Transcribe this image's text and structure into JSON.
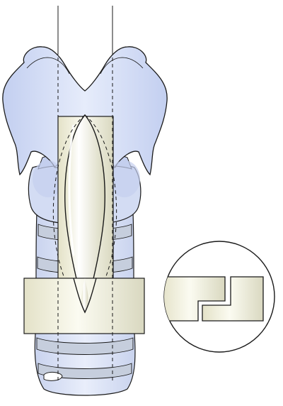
{
  "diagram": {
    "subject": "larynx-and-trachea-anatomy",
    "palette": {
      "cartilage_fill": "#d6def5",
      "cartilage_shadow": "#b8c4ea",
      "trachea_fill": "#dbe3f6",
      "ring_fill": "#c6cedd",
      "block_fill": "#ecebd7",
      "block_highlight": "#fbfbf1",
      "stroke": "#1a1a1a"
    },
    "icons": {
      "lancet": "lancet-shaped-cartilage-graft",
      "inset": "magnified-step-joint"
    }
  }
}
